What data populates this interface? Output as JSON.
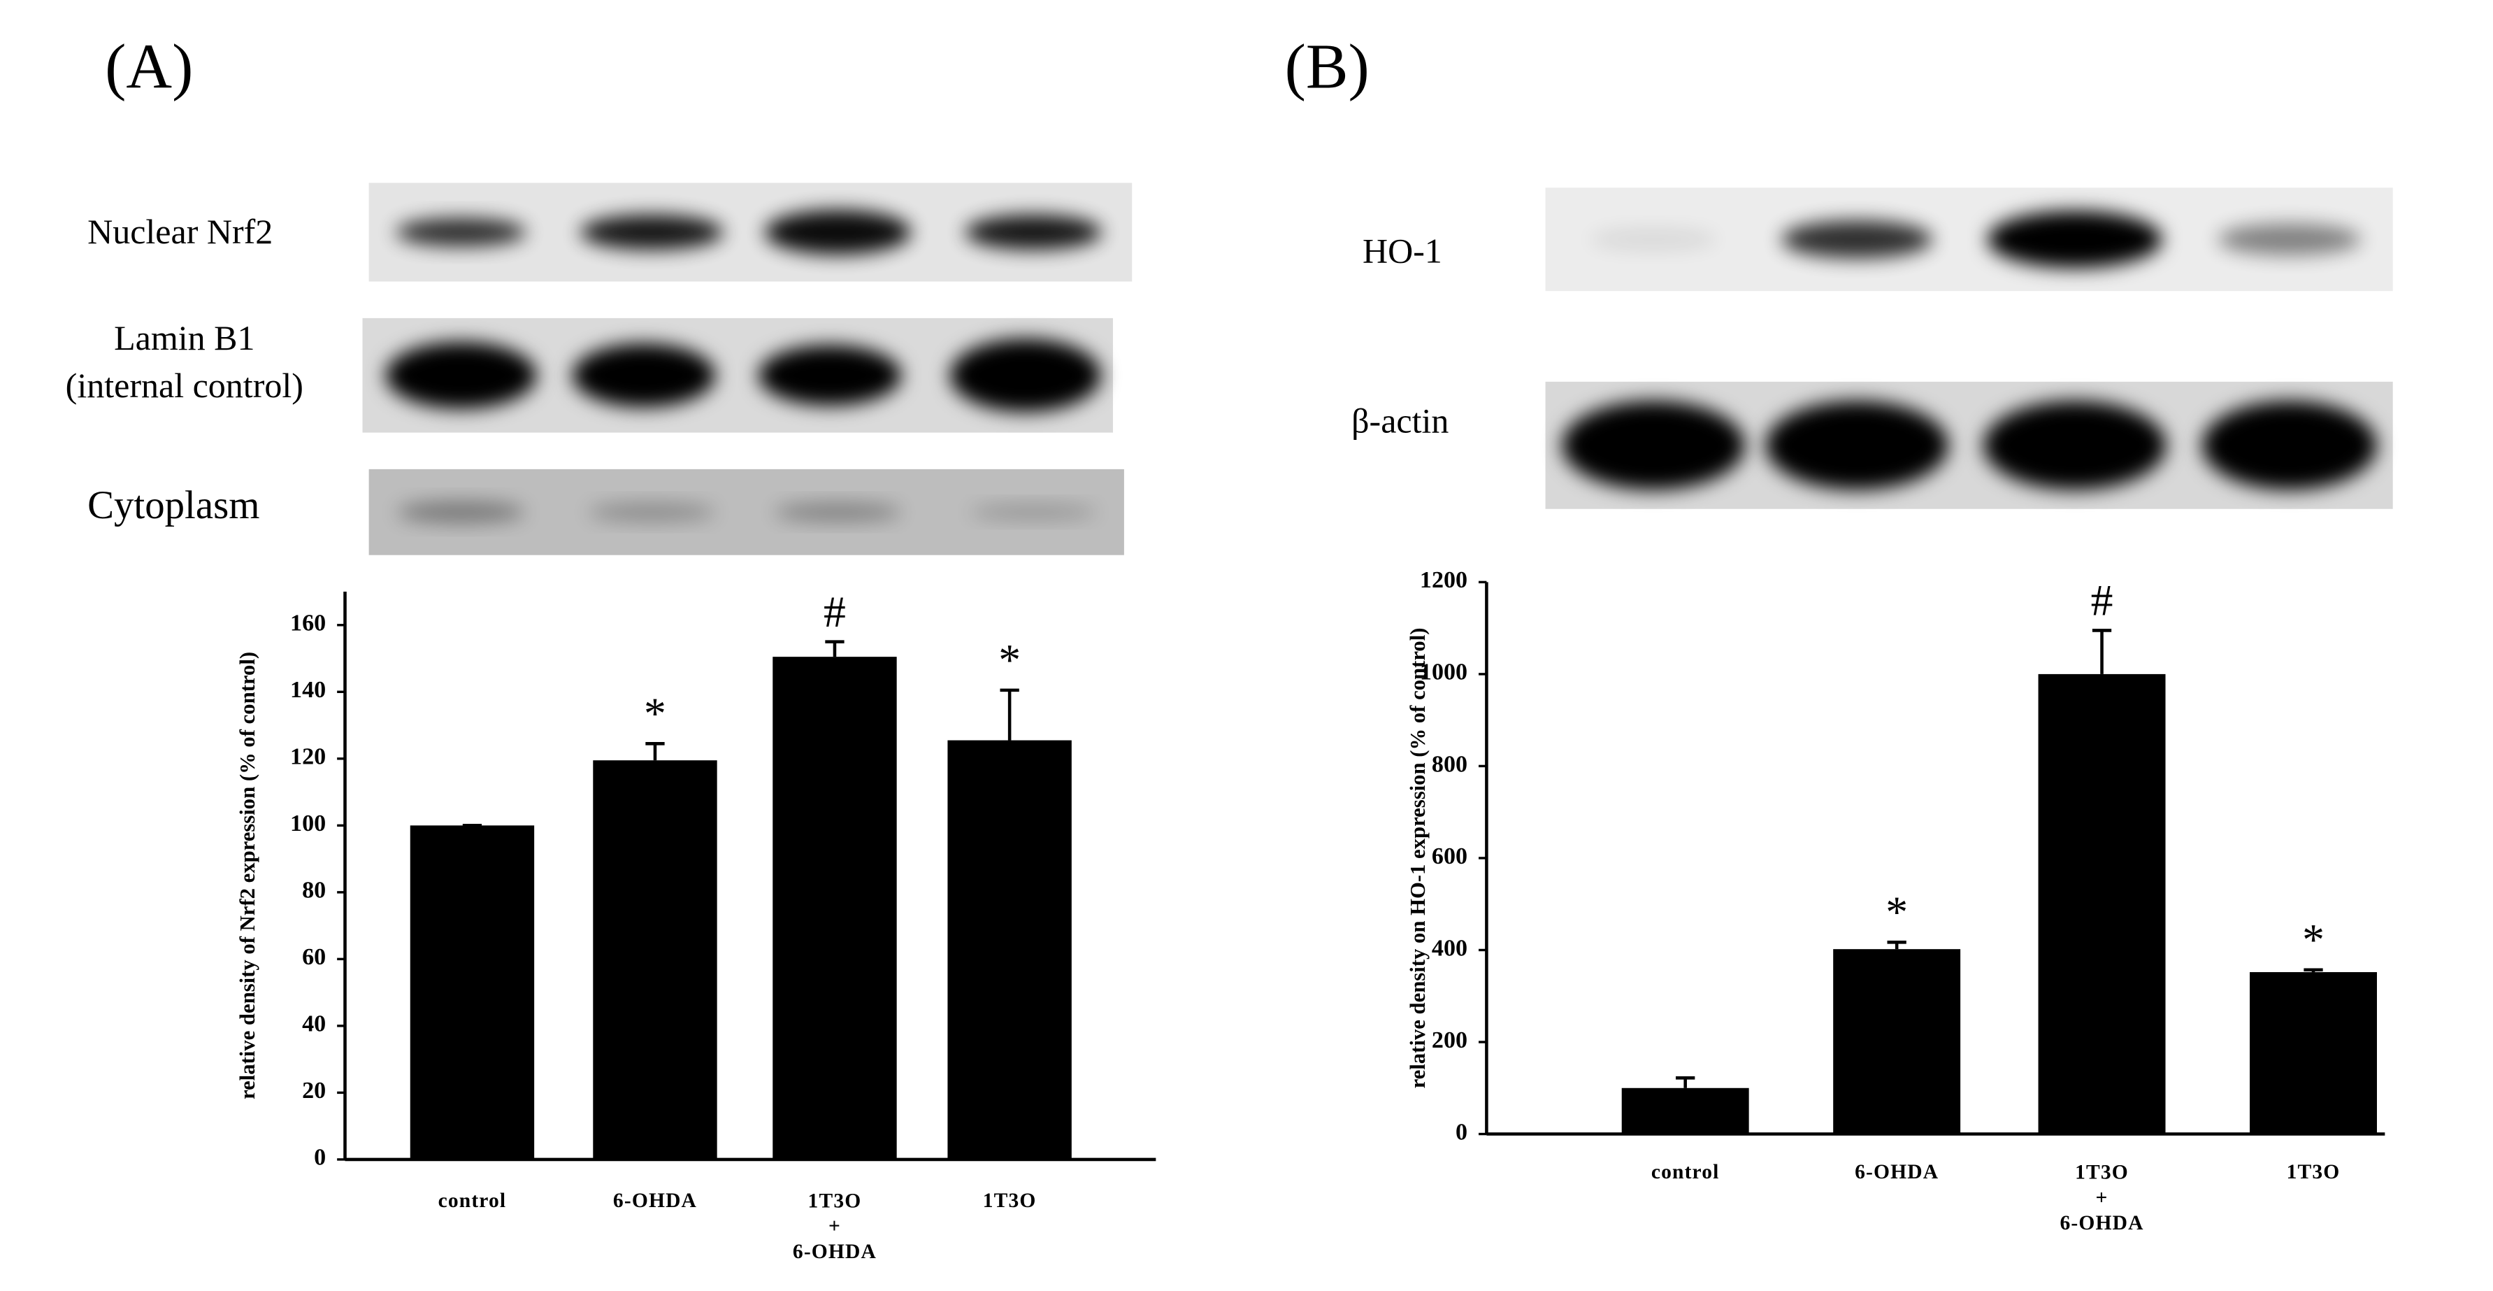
{
  "figure": {
    "panel_labels": [
      "(A)",
      "(B)"
    ],
    "blot_labels": [
      [
        "Nuclear Nrf2",
        "Lamin B1\n(internal control)",
        "Cytoplasm"
      ],
      [
        "HO-1",
        "β-actin"
      ]
    ]
  },
  "chart_data": [
    {
      "type": "bar",
      "ylabel": "relative density of Nrf2 expression (% of control)",
      "categories": [
        "control",
        "6-OHDA",
        "1T3O\n+\n6-OHDA",
        "1T3O"
      ],
      "values": [
        100,
        119.5,
        150.5,
        125.5
      ],
      "errors": [
        0,
        5,
        4.5,
        15
      ],
      "markers": [
        null,
        "*",
        "#",
        "*"
      ],
      "color": "#000000",
      "ylim": [
        0,
        170
      ],
      "yticks": [
        0,
        20,
        40,
        60,
        80,
        100,
        120,
        140,
        160
      ]
    },
    {
      "type": "bar",
      "ylabel": "relative density on HO-1 expression (% of control)",
      "categories": [
        "control",
        "6-OHDA",
        "1T3O\n+\n6-OHDA",
        "1T3O"
      ],
      "values": [
        100,
        402,
        1000,
        352
      ],
      "errors": [
        22,
        15,
        95,
        5
      ],
      "markers": [
        null,
        "*",
        "#",
        "*"
      ],
      "color": "#000000",
      "ylim": [
        0,
        1200
      ],
      "yticks": [
        0,
        200,
        400,
        600,
        800,
        1000,
        1200
      ]
    }
  ]
}
